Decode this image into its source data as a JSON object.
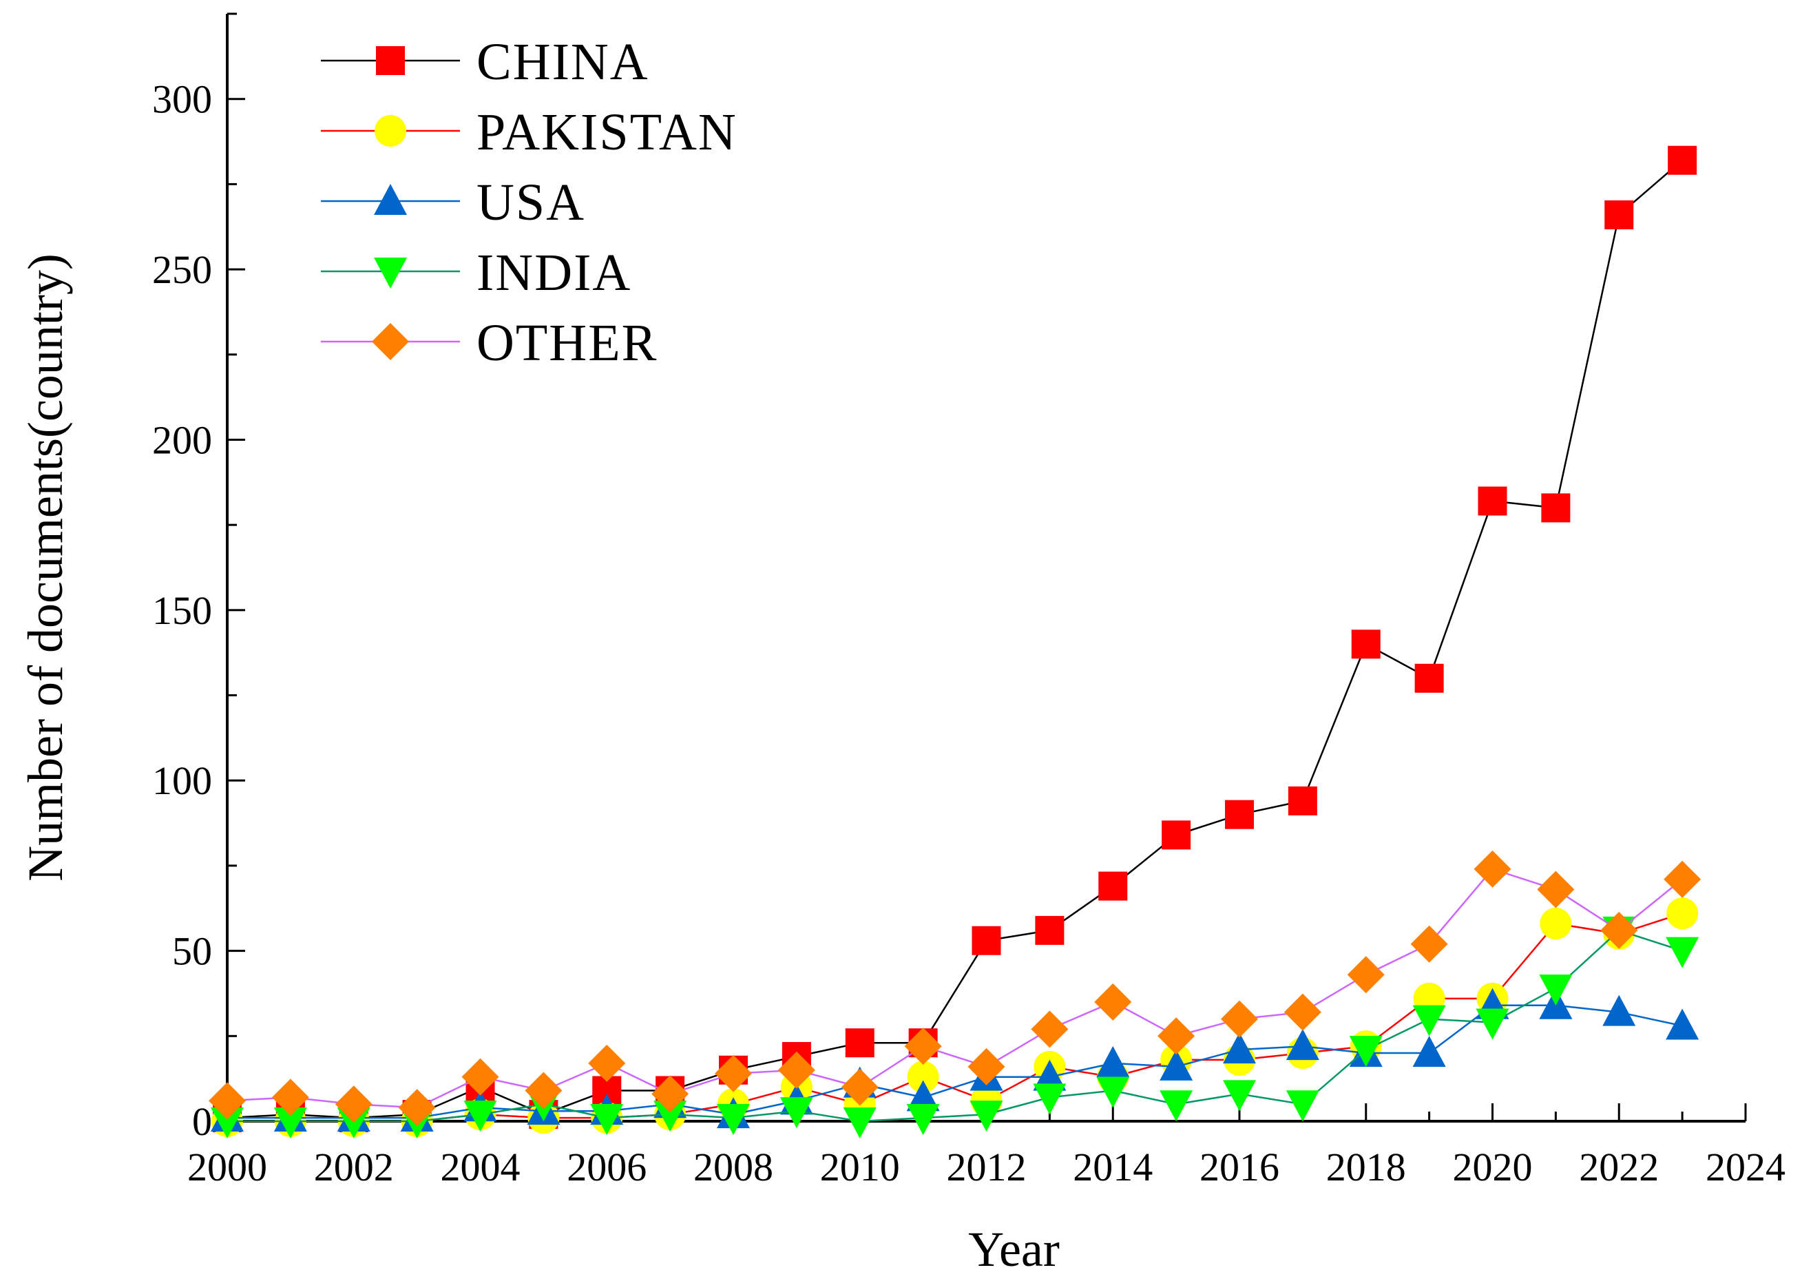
{
  "chart_data": {
    "type": "line",
    "title": "",
    "xlabel": "Year",
    "ylabel": "Number of documents(country)",
    "xlim": [
      2000,
      2024
    ],
    "ylim": [
      0,
      325
    ],
    "x_ticks": [
      "2000",
      "2002",
      "2004",
      "2006",
      "2008",
      "2010",
      "2012",
      "2014",
      "2016",
      "2018",
      "2020",
      "2022",
      "2024"
    ],
    "y_ticks": [
      "0",
      "50",
      "100",
      "150",
      "200",
      "250",
      "300"
    ],
    "legend_position": "top-left",
    "grid": false,
    "x": [
      2000,
      2001,
      2002,
      2003,
      2004,
      2005,
      2006,
      2007,
      2008,
      2009,
      2010,
      2011,
      2012,
      2013,
      2014,
      2015,
      2016,
      2017,
      2018,
      2019,
      2020,
      2021,
      2022,
      2023
    ],
    "series": [
      {
        "name": "CHINA",
        "color": "#ff0000",
        "line_color": "#000000",
        "marker": "square",
        "values": [
          1,
          2,
          1,
          2,
          10,
          2,
          9,
          9,
          15,
          19,
          23,
          23,
          53,
          56,
          69,
          84,
          90,
          94,
          140,
          130,
          182,
          180,
          266,
          282
        ]
      },
      {
        "name": "PAKISTAN",
        "color": "#ffff00",
        "line_color": "#ff0000",
        "marker": "circle",
        "values": [
          0,
          0,
          0,
          0,
          2,
          1,
          1,
          2,
          5,
          10,
          5,
          13,
          6,
          16,
          13,
          18,
          18,
          20,
          22,
          36,
          36,
          58,
          55,
          61
        ]
      },
      {
        "name": "USA",
        "color": "#0066cc",
        "line_color": "#0066cc",
        "marker": "triangle-up",
        "values": [
          1,
          1,
          1,
          1,
          4,
          3,
          3,
          5,
          2,
          6,
          11,
          7,
          13,
          13,
          17,
          16,
          21,
          22,
          20,
          20,
          34,
          34,
          32,
          28
        ]
      },
      {
        "name": "INDIA",
        "color": "#00ff00",
        "line_color": "#009966",
        "marker": "triangle-down",
        "values": [
          0,
          0,
          0,
          0,
          2,
          5,
          1,
          2,
          1,
          3,
          0,
          1,
          2,
          7,
          9,
          5,
          8,
          5,
          21,
          30,
          29,
          39,
          56,
          50
        ]
      },
      {
        "name": "OTHER",
        "color": "#ff8000",
        "line_color": "#cc66ff",
        "marker": "diamond",
        "values": [
          6,
          7,
          5,
          4,
          13,
          9,
          17,
          8,
          14,
          15,
          10,
          22,
          16,
          27,
          35,
          25,
          30,
          32,
          43,
          52,
          74,
          68,
          56,
          71
        ]
      }
    ]
  }
}
